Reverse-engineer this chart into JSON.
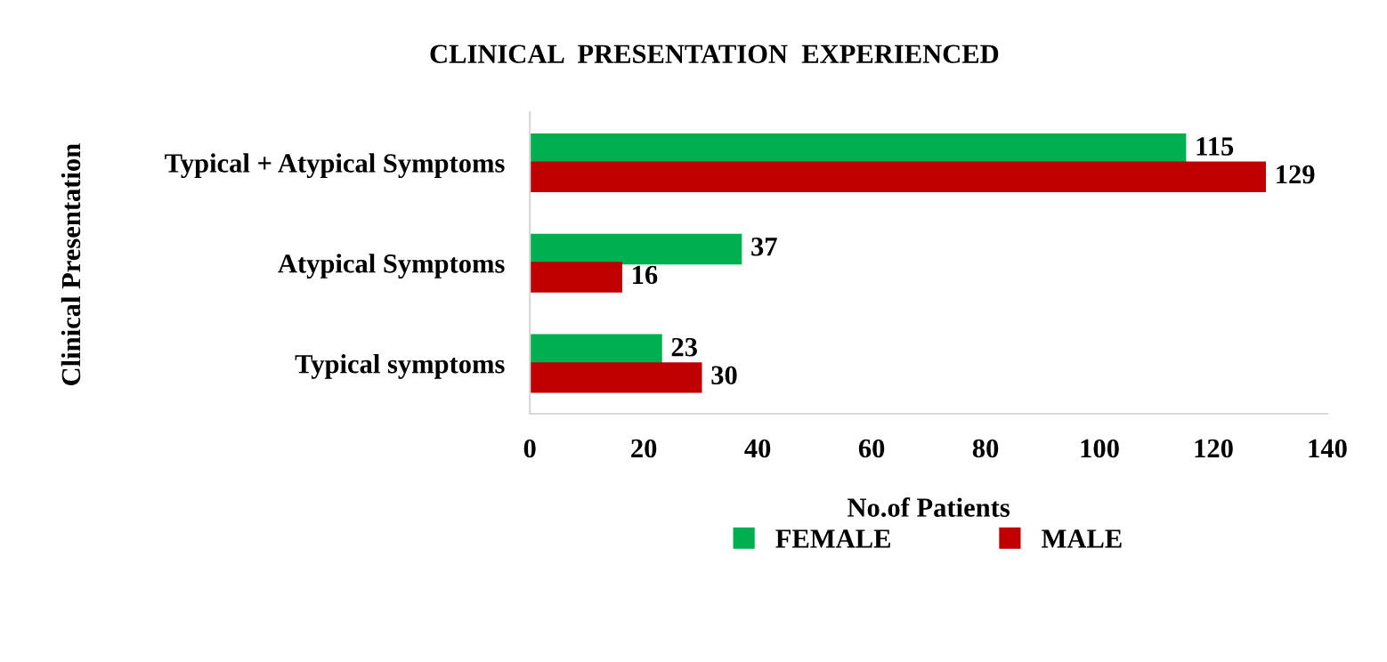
{
  "chart_data": {
    "type": "bar",
    "orientation": "horizontal",
    "title": "CLINICAL  PRESENTATION  EXPERIENCED",
    "xlabel": "No.of Patients",
    "ylabel": "Clinical Presentation",
    "categories": [
      "Typical + Atypical Symptoms",
      "Atypical Symptoms",
      "Typical symptoms"
    ],
    "series": [
      {
        "name": "FEMALE",
        "color": "#00b050",
        "values": [
          115,
          37,
          23
        ]
      },
      {
        "name": "MALE",
        "color": "#c00000",
        "values": [
          129,
          16,
          30
        ]
      }
    ],
    "xlim": [
      0,
      140
    ],
    "xticks": [
      0,
      20,
      40,
      60,
      80,
      100,
      120,
      140
    ],
    "data_labels": true,
    "legend": "bottom",
    "grid": false
  }
}
